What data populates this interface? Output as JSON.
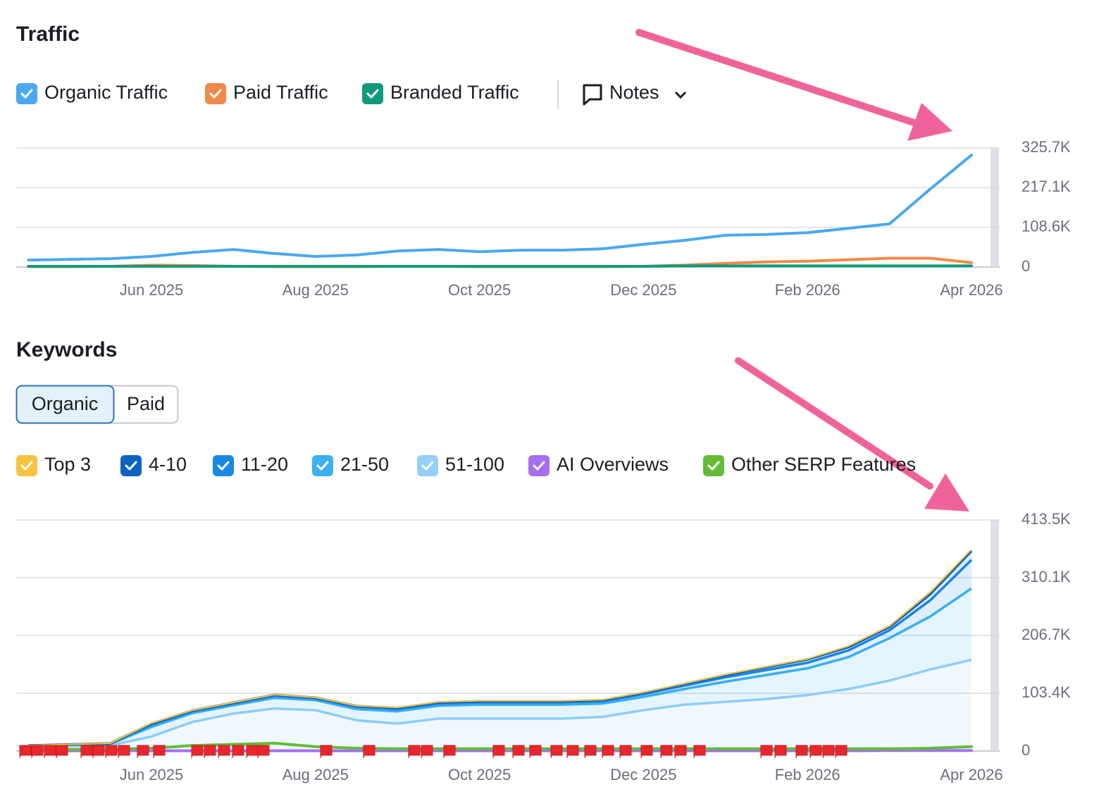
{
  "chart_data": [
    {
      "type": "line",
      "title": "Traffic",
      "notes_label": "Notes",
      "categories": [
        null,
        null,
        null,
        "Jun 2025",
        null,
        null,
        null,
        "Aug 2025",
        null,
        null,
        null,
        "Oct 2025",
        null,
        null,
        null,
        "Dec 2025",
        null,
        null,
        null,
        "Feb 2026",
        null,
        null,
        null,
        "Apr 2026"
      ],
      "series": [
        {
          "name": "Organic Traffic",
          "color": "#4aa8ee",
          "values": [
            19000,
            21000,
            23000,
            29000,
            40000,
            48000,
            37000,
            29000,
            33000,
            44000,
            48000,
            42000,
            46000,
            46000,
            50000,
            62000,
            73000,
            87000,
            89000,
            94000,
            106000,
            118000,
            214000,
            306000
          ]
        },
        {
          "name": "Paid Traffic",
          "color": "#f2894a",
          "values": [
            1000,
            1000,
            2000,
            5000,
            4000,
            2000,
            1000,
            1000,
            1000,
            2000,
            2000,
            1000,
            1000,
            1000,
            1000,
            2000,
            5000,
            10000,
            14000,
            16000,
            20000,
            24000,
            24000,
            12000
          ]
        },
        {
          "name": "Branded Traffic",
          "color": "#0f9a7c",
          "values": [
            2000,
            2000,
            2000,
            2000,
            2000,
            2000,
            2000,
            2000,
            2000,
            2000,
            2000,
            2000,
            2000,
            2000,
            2000,
            2000,
            3000,
            3000,
            3000,
            3000,
            3000,
            3000,
            3000,
            3000
          ]
        }
      ],
      "ylim": [
        0,
        325700
      ],
      "yticks": [
        0,
        {
          "value": 108600,
          "label": "108.6K"
        },
        {
          "value": 217100,
          "label": "217.1K"
        },
        {
          "value": 325700,
          "label": "325.7K"
        }
      ],
      "grid": true
    },
    {
      "type": "area",
      "title": "Keywords",
      "tabs": [
        "Organic",
        "Paid"
      ],
      "stacked": true,
      "categories": [
        null,
        null,
        null,
        "Jun 2025",
        null,
        null,
        null,
        "Aug 2025",
        null,
        null,
        null,
        "Oct 2025",
        null,
        null,
        null,
        "Dec 2025",
        null,
        null,
        null,
        "Feb 2026",
        null,
        null,
        null,
        "Apr 2026"
      ],
      "series": [
        {
          "name": "Top 3",
          "color": "#f7c340",
          "values": [
            100,
            200,
            200,
            1000,
            500,
            500,
            500,
            500,
            500,
            1000,
            1000,
            1000,
            1000,
            1000,
            1000,
            1000,
            1000,
            1000,
            1000,
            1000,
            2000,
            2000,
            4000,
            3000
          ]
        },
        {
          "name": "4-10",
          "color": "#0e63c0",
          "values": [
            100,
            200,
            300,
            2000,
            1500,
            1500,
            1500,
            1500,
            1500,
            2000,
            2000,
            2000,
            2000,
            2000,
            2000,
            2000,
            3000,
            4000,
            5000,
            6000,
            6000,
            6000,
            11000,
            16000
          ]
        },
        {
          "name": "11-20",
          "color": "#1a88e4",
          "values": [
            300,
            400,
            500,
            4000,
            3000,
            3000,
            4000,
            3000,
            4000,
            4000,
            4000,
            4000,
            4000,
            4000,
            4000,
            5000,
            6000,
            8000,
            9000,
            10000,
            12000,
            14000,
            29000,
            51000
          ]
        },
        {
          "name": "21-50",
          "color": "#3cb0f2",
          "values": [
            1500,
            2200,
            3000,
            17000,
            16000,
            15000,
            19000,
            18000,
            20000,
            22000,
            23000,
            25000,
            25000,
            25000,
            24000,
            24000,
            28000,
            36000,
            43000,
            48000,
            57000,
            76000,
            95000,
            128000
          ]
        },
        {
          "name": "51-100",
          "color": "#93cff8",
          "values": [
            8000,
            9000,
            10000,
            26000,
            52000,
            67000,
            76000,
            73000,
            55000,
            49000,
            58000,
            58000,
            58000,
            58000,
            61000,
            73000,
            83000,
            88000,
            93000,
            100000,
            111000,
            126000,
            146000,
            163000
          ]
        },
        {
          "name": "AI Overviews",
          "color": "#a66ef0",
          "stacked": false,
          "values": [
            500,
            500,
            500,
            500,
            500,
            500,
            500,
            500,
            500,
            500,
            500,
            500,
            500,
            500,
            500,
            500,
            500,
            500,
            500,
            500,
            500,
            1000,
            1000,
            1000
          ]
        },
        {
          "name": "Other SERP Features",
          "color": "#62bc38",
          "stacked": false,
          "values": [
            3000,
            3000,
            3000,
            5000,
            10000,
            12000,
            14000,
            8000,
            5000,
            4000,
            4000,
            4000,
            4000,
            4000,
            4000,
            4000,
            4000,
            4000,
            4000,
            4000,
            4000,
            4000,
            5000,
            8000
          ]
        }
      ],
      "ylim": [
        0,
        413500
      ],
      "yticks": [
        0,
        {
          "value": 103400,
          "label": "103.4K"
        },
        {
          "value": 206700,
          "label": "206.7K"
        },
        {
          "value": 310100,
          "label": "310.1K"
        },
        {
          "value": 413500,
          "label": "413.5K"
        }
      ],
      "grid": true
    }
  ]
}
